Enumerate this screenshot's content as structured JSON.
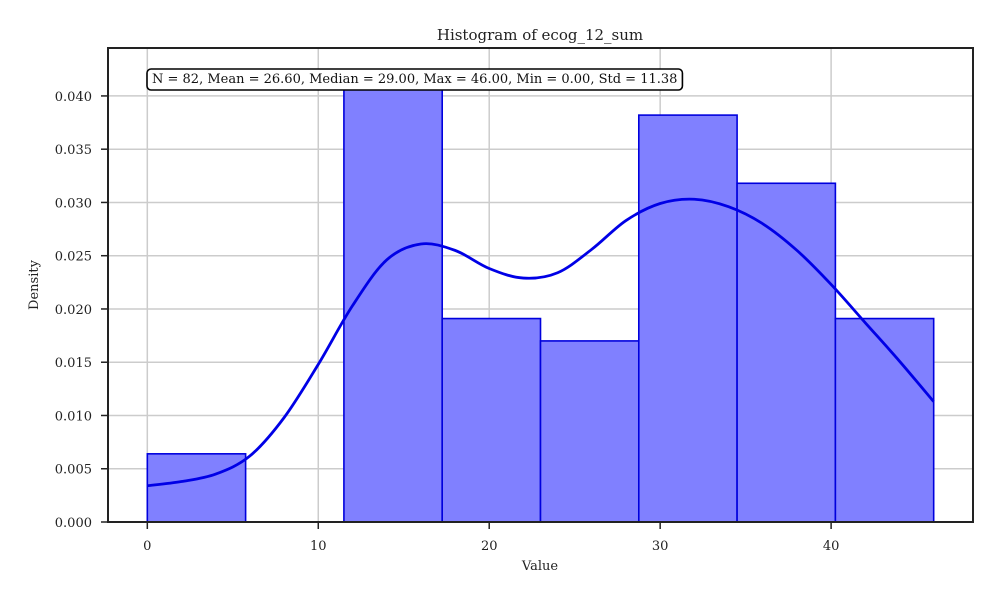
{
  "chart_data": {
    "type": "bar",
    "title": "Histogram of ecog_12_sum",
    "xlabel": "Value",
    "ylabel": "Density",
    "xlim": [
      -2.3,
      48.3
    ],
    "ylim": [
      0,
      0.0445
    ],
    "x_ticks": [
      0,
      10,
      20,
      30,
      40
    ],
    "y_ticks": [
      0.0,
      0.005,
      0.01,
      0.015,
      0.02,
      0.025,
      0.03,
      0.035,
      0.04
    ],
    "x_tick_labels": [
      "0",
      "10",
      "20",
      "30",
      "40"
    ],
    "y_tick_labels": [
      "0.000",
      "0.005",
      "0.010",
      "0.015",
      "0.020",
      "0.025",
      "0.030",
      "0.035",
      "0.040"
    ],
    "grid": true,
    "bins": [
      {
        "x0": 0.0,
        "x1": 5.75,
        "density": 0.0064
      },
      {
        "x0": 5.75,
        "x1": 11.5,
        "density": 0.0
      },
      {
        "x0": 11.5,
        "x1": 17.25,
        "density": 0.0408
      },
      {
        "x0": 17.25,
        "x1": 23.0,
        "density": 0.0191
      },
      {
        "x0": 23.0,
        "x1": 28.75,
        "density": 0.017
      },
      {
        "x0": 28.75,
        "x1": 34.5,
        "density": 0.0382
      },
      {
        "x0": 34.5,
        "x1": 40.25,
        "density": 0.0318
      },
      {
        "x0": 40.25,
        "x1": 46.0,
        "density": 0.0191
      }
    ],
    "kde": {
      "x": [
        0,
        2,
        4,
        6,
        8,
        10,
        12,
        14,
        16,
        18,
        20,
        22,
        24,
        26,
        28,
        30,
        32,
        34,
        36,
        38,
        40,
        42,
        44,
        46
      ],
      "y": [
        0.0034,
        0.0038,
        0.0045,
        0.0062,
        0.0098,
        0.0148,
        0.0203,
        0.0246,
        0.0261,
        0.0255,
        0.0238,
        0.0229,
        0.0234,
        0.0256,
        0.0283,
        0.0299,
        0.0303,
        0.0296,
        0.028,
        0.0255,
        0.0223,
        0.0187,
        0.0151,
        0.0113
      ]
    },
    "stats_text": "N = 82, Mean = 26.60, Median = 29.00, Max = 46.00, Min = 0.00, Std = 11.38",
    "colors": {
      "bar_fill": "#8080ff",
      "bar_edge": "#0000dd",
      "kde_line": "#0000e6",
      "grid": "#cccccc",
      "axis": "#222222"
    }
  }
}
